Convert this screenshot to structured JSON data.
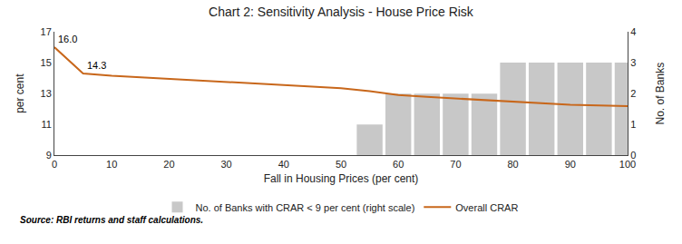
{
  "chart_data": {
    "type": "line",
    "title": "Chart 2: Sensitivity Analysis - House Price Risk",
    "x_label": "Fall in Housing Prices (per cent)",
    "y_label": "per cent",
    "y2_label": "No. of Banks",
    "source": "Source: RBI returns and staff calculations.",
    "series": [
      {
        "name": "No. of Banks with CRAR < 9 per cent (right scale)",
        "type": "bar",
        "axis": "y2",
        "color": "#c8c8c8",
        "x": [
          55,
          60,
          65,
          70,
          75,
          80,
          85,
          90,
          95,
          100
        ],
        "values": [
          1,
          2,
          2,
          2,
          2,
          3,
          3,
          3,
          3,
          3
        ]
      },
      {
        "name": "Overall CRAR",
        "type": "line",
        "color": "#c8671b",
        "x": [
          0,
          5,
          10,
          20,
          30,
          40,
          50,
          55,
          60,
          65,
          70,
          75,
          80,
          85,
          90,
          95,
          100
        ],
        "values": [
          16.0,
          14.3,
          14.15,
          13.95,
          13.75,
          13.55,
          13.35,
          13.15,
          12.9,
          12.78,
          12.68,
          12.58,
          12.48,
          12.38,
          12.28,
          12.23,
          12.18
        ]
      }
    ],
    "annotations": [
      {
        "x": 0,
        "y": 16.0,
        "text": "16.0"
      },
      {
        "x": 5,
        "y": 14.3,
        "text": "14.3"
      }
    ],
    "xlim": [
      0,
      100
    ],
    "xticks": [
      0,
      10,
      20,
      30,
      40,
      50,
      60,
      70,
      80,
      90,
      100
    ],
    "ylim": [
      9,
      17
    ],
    "yticks": [
      9,
      11,
      13,
      15,
      17
    ],
    "y2lim": [
      0,
      4
    ],
    "y2ticks": [
      0,
      1,
      2,
      3,
      4
    ],
    "grid": false,
    "legend": "bottom"
  }
}
